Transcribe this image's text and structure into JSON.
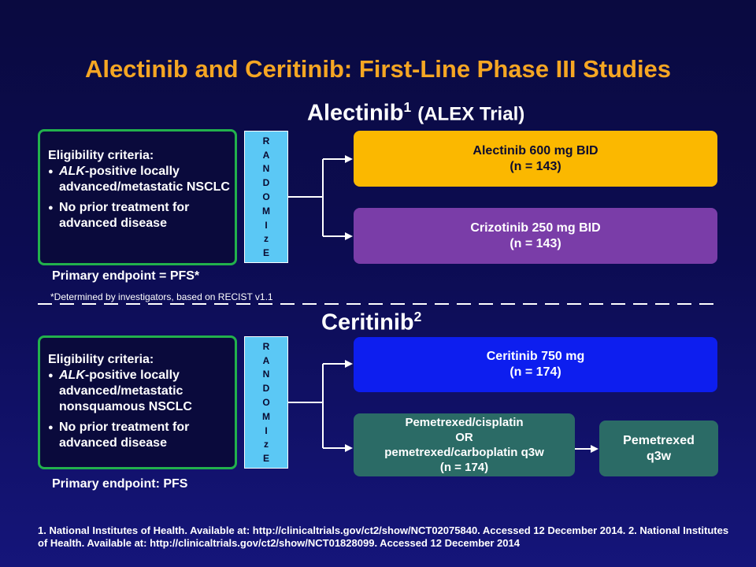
{
  "title": "Alectinib and Ceritinib: First-Line Phase III Studies",
  "alex": {
    "title_main": "Alectinib",
    "title_sup": "1",
    "title_sub": "(ALEX Trial)",
    "eligibility_header": "Eligibility criteria:",
    "criteria_1_italic": "ALK",
    "criteria_1_rest": "-positive locally advanced/metastatic NSCLC",
    "criteria_2": "No prior treatment for advanced disease",
    "randomize": [
      "R",
      "A",
      "N",
      "D",
      "O",
      "M",
      "I",
      "z",
      "E"
    ],
    "arm_1_line1": "Alectinib 600 mg BID",
    "arm_1_line2": "(n = 143)",
    "arm_2_line1": "Crizotinib 250 mg BID",
    "arm_2_line2": "(n = 143)",
    "endpoint": "Primary endpoint  = PFS*",
    "footnote": "*Determined by investigators, based on RECIST v1.1"
  },
  "ceritinib": {
    "title_main": "Ceritinib",
    "title_sup": "2",
    "eligibility_header": "Eligibility criteria:",
    "criteria_1_italic": "ALK",
    "criteria_1_rest": "-positive locally advanced/metastatic nonsquamous NSCLC",
    "criteria_2": "No prior treatment for advanced disease",
    "randomize": [
      "R",
      "A",
      "N",
      "D",
      "O",
      "M",
      "I",
      "z",
      "E"
    ],
    "arm_1_line1": "Ceritinib 750 mg",
    "arm_1_line2": "(n = 174)",
    "arm_2_line1": "Pemetrexed/cisplatin",
    "arm_2_line2": "OR",
    "arm_2_line3": "pemetrexed/carboplatin q3w",
    "arm_2_line4": "(n = 174)",
    "maintenance_line1": "Pemetrexed",
    "maintenance_line2": "q3w",
    "endpoint": "Primary endpoint: PFS"
  },
  "references": "1. National Institutes of Health. Available at: http://clinicaltrials.gov/ct2/show/NCT02075840.  Accessed 12 December 2014. 2. National Institutes of Health. Available at: http://clinicaltrials.gov/ct2/show/NCT01828099. Accessed 12 December 2014",
  "colors": {
    "title": "#f5a623",
    "eligibility_border": "#22b14c",
    "randomize": "#5bc8f5",
    "alectinib_arm": "#fbb800",
    "crizotinib_arm": "#7a3da8",
    "ceritinib_arm": "#0d1eef",
    "chemo_arm": "#2b6b66"
  }
}
